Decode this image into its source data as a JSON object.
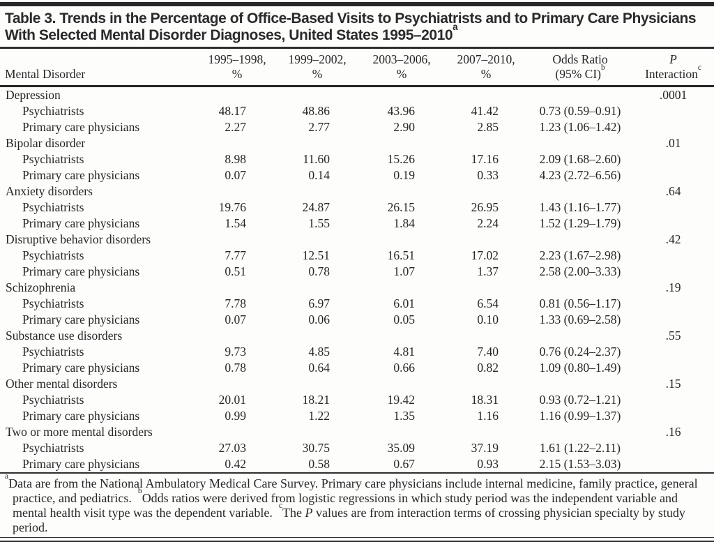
{
  "title": {
    "line1": "Table 3. Trends in the Percentage of Office-Based Visits to Psychiatrists and to Primary Care Physicians",
    "line2": "With Selected Mental Disorder Diagnoses, United States 1995–2010",
    "sup": "a"
  },
  "table": {
    "row_header": "Mental Disorder",
    "period_columns": [
      {
        "line1": "1995–1998,",
        "line2": "%"
      },
      {
        "line1": "1999–2002,",
        "line2": "%"
      },
      {
        "line1": "2003–2006,",
        "line2": "%"
      },
      {
        "line1": "2007–2010,",
        "line2": "%"
      }
    ],
    "odds_column": {
      "line1": "Odds Ratio",
      "line2": "(95% CI)",
      "sup": "b"
    },
    "p_column": {
      "line1": "P",
      "line1_italic": true,
      "line2": "Interaction",
      "sup": "c"
    },
    "groups": [
      {
        "disorder": "Depression",
        "p_interaction": ".0001",
        "rows": [
          {
            "label": "Psychiatrists",
            "values": [
              "48.17",
              "48.86",
              "43.96",
              "41.42"
            ],
            "odds_ratio": "0.73 (0.59–0.91)"
          },
          {
            "label": "Primary care physicians",
            "values": [
              "2.27",
              "2.77",
              "2.90",
              "2.85"
            ],
            "odds_ratio": "1.23 (1.06–1.42)"
          }
        ]
      },
      {
        "disorder": "Bipolar disorder",
        "p_interaction": ".01",
        "rows": [
          {
            "label": "Psychiatrists",
            "values": [
              "8.98",
              "11.60",
              "15.26",
              "17.16"
            ],
            "odds_ratio": "2.09 (1.68–2.60)"
          },
          {
            "label": "Primary care physicians",
            "values": [
              "0.07",
              "0.14",
              "0.19",
              "0.33"
            ],
            "odds_ratio": "4.23 (2.72–6.56)"
          }
        ]
      },
      {
        "disorder": "Anxiety disorders",
        "p_interaction": ".64",
        "rows": [
          {
            "label": "Psychiatrists",
            "values": [
              "19.76",
              "24.87",
              "26.15",
              "26.95"
            ],
            "odds_ratio": "1.43 (1.16–1.77)"
          },
          {
            "label": "Primary care physicians",
            "values": [
              "1.54",
              "1.55",
              "1.84",
              "2.24"
            ],
            "odds_ratio": "1.52 (1.29–1.79)"
          }
        ]
      },
      {
        "disorder": "Disruptive behavior disorders",
        "p_interaction": ".42",
        "rows": [
          {
            "label": "Psychiatrists",
            "values": [
              "7.77",
              "12.51",
              "16.51",
              "17.02"
            ],
            "odds_ratio": "2.23 (1.67–2.98)"
          },
          {
            "label": "Primary care physicians",
            "values": [
              "0.51",
              "0.78",
              "1.07",
              "1.37"
            ],
            "odds_ratio": "2.58 (2.00–3.33)"
          }
        ]
      },
      {
        "disorder": "Schizophrenia",
        "p_interaction": ".19",
        "rows": [
          {
            "label": "Psychiatrists",
            "values": [
              "7.78",
              "6.97",
              "6.01",
              "6.54"
            ],
            "odds_ratio": "0.81 (0.56–1.17)"
          },
          {
            "label": "Primary care physicians",
            "values": [
              "0.07",
              "0.06",
              "0.05",
              "0.10"
            ],
            "odds_ratio": "1.33 (0.69–2.58)"
          }
        ]
      },
      {
        "disorder": "Substance use disorders",
        "p_interaction": ".55",
        "rows": [
          {
            "label": "Psychiatrists",
            "values": [
              "9.73",
              "4.85",
              "4.81",
              "7.40"
            ],
            "odds_ratio": "0.76 (0.24–2.37)"
          },
          {
            "label": "Primary care physicians",
            "values": [
              "0.78",
              "0.64",
              "0.66",
              "0.82"
            ],
            "odds_ratio": "1.09 (0.80–1.49)"
          }
        ]
      },
      {
        "disorder": "Other mental disorders",
        "p_interaction": ".15",
        "rows": [
          {
            "label": "Psychiatrists",
            "values": [
              "20.01",
              "18.21",
              "19.42",
              "18.31"
            ],
            "odds_ratio": "0.93 (0.72–1.21)"
          },
          {
            "label": "Primary care physicians",
            "values": [
              "0.99",
              "1.22",
              "1.35",
              "1.16"
            ],
            "odds_ratio": "1.16 (0.99–1.37)"
          }
        ]
      },
      {
        "disorder": "Two or more mental disorders",
        "p_interaction": ".16",
        "rows": [
          {
            "label": "Psychiatrists",
            "values": [
              "27.03",
              "30.75",
              "35.09",
              "37.19"
            ],
            "odds_ratio": "1.61 (1.22–2.11)"
          },
          {
            "label": "Primary care physicians",
            "values": [
              "0.42",
              "0.58",
              "0.67",
              "0.93"
            ],
            "odds_ratio": "2.15 (1.53–3.03)"
          }
        ]
      }
    ]
  },
  "footnotes": {
    "segments": [
      {
        "type": "sup",
        "text": "a"
      },
      {
        "type": "text",
        "text": "Data are from the National Ambulatory Medical Care Survey. Primary care physicians include internal medicine, family practice, general practice, and pediatrics."
      },
      {
        "type": "gap",
        "text": "  "
      },
      {
        "type": "sup",
        "text": "b"
      },
      {
        "type": "text",
        "text": "Odds ratios were derived from logistic regressions in which study period was the independent variable and mental health visit type was the dependent variable."
      },
      {
        "type": "gap",
        "text": "  "
      },
      {
        "type": "sup",
        "text": "c"
      },
      {
        "type": "text",
        "text": "The "
      },
      {
        "type": "italic",
        "text": "P"
      },
      {
        "type": "text",
        "text": " values are from interaction terms of crossing physician specialty by study period."
      }
    ]
  },
  "colors": {
    "ink": "#262626",
    "rule": "#2e2e2e",
    "background": "#fdfdfc"
  }
}
